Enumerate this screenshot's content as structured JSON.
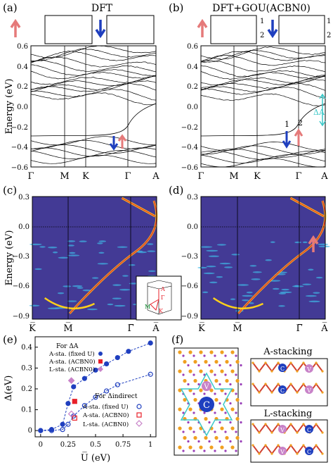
{
  "panels": {
    "a": {
      "label": "(a)",
      "title": "DFT",
      "ylabel": "Energy (eV)",
      "yticks": [
        "0.6",
        "0.4",
        "0.2",
        "0.0",
        "−0.2",
        "−0.4",
        "−0.6"
      ],
      "xticks": [
        "Γ",
        "M",
        "K",
        "Γ",
        "A"
      ]
    },
    "b": {
      "label": "(b)",
      "title": "DFT+GOU(ACBN0)",
      "yticks": [
        "0.6",
        "0.4",
        "0.2",
        "0.0",
        "−0.2",
        "−0.4",
        "−0.6"
      ],
      "xticks": [
        "Γ",
        "M",
        "K",
        "Γ",
        "A"
      ],
      "inset_layer_labels": [
        "1",
        "2",
        "1",
        "2"
      ],
      "arrow_labels": [
        "1",
        "2"
      ],
      "gap_label": "ΔA"
    },
    "c": {
      "label": "(c)",
      "ylabel": "Energy (eV)",
      "yticks": [
        "0.3",
        "0.0",
        "−0.3",
        "−0.6",
        "−0.9"
      ],
      "xticks": [
        "K̅",
        "M̅",
        "Γ̅",
        "A̅"
      ],
      "bz_labels": [
        "A",
        "Γ",
        "M",
        "K"
      ]
    },
    "d": {
      "label": "(d)",
      "yticks": [
        "0.3",
        "0.0",
        "−0.3",
        "−0.6",
        "−0.9"
      ],
      "xticks": [
        "K̅",
        "M̅",
        "Γ̅",
        "A̅"
      ]
    },
    "e": {
      "label": "(e)",
      "ylabel": "Δ(eV)",
      "xlabel": "U̅ (eV)",
      "legend_delta_a_title": "For ΔA",
      "legend_delta_a": [
        "A-sta. (fixed U)",
        "A-sta. (ACBN0)",
        "L-sta. (ACBN0)"
      ],
      "legend_delta_ind_title": "For Δindirect",
      "legend_delta_ind": [
        "A-sta. (fixed U)",
        "A-sta. (ACBN0)",
        "L-sta. (ACBN0)"
      ]
    },
    "f": {
      "label": "(f)",
      "atom_labels": [
        "V",
        "C",
        "V",
        "C"
      ],
      "a_stacking": "A-stacking",
      "l_stacking": "L-stacking"
    }
  },
  "chart_data": {
    "type": "scatter",
    "xlabel": "U̅ (eV)",
    "ylabel": "Δ(eV)",
    "xlim": [
      -0.05,
      1.05
    ],
    "ylim": [
      -0.03,
      0.45
    ],
    "xticks": [
      0,
      0.25,
      0.5,
      0.75,
      1
    ],
    "yticks": [
      0,
      0.1,
      0.2,
      0.3,
      0.4
    ],
    "series": [
      {
        "name": "A-sta. (fixed U)",
        "marker": "filled-circle",
        "color": "#1f3fbf",
        "x": [
          0,
          0.1,
          0.2,
          0.25,
          0.3,
          0.4,
          0.5,
          0.6,
          0.7,
          0.8,
          1.0
        ],
        "y": [
          0.0,
          0.005,
          0.03,
          0.13,
          0.21,
          0.25,
          0.29,
          0.32,
          0.35,
          0.38,
          0.42
        ]
      },
      {
        "name": "A-sta. (ACBN0)",
        "marker": "filled-square",
        "color": "#e8202a",
        "x": [
          0.31
        ],
        "y": [
          0.14
        ]
      },
      {
        "name": "L-sta. (ACBN0)",
        "marker": "filled-diamond",
        "color": "#c882c8",
        "x": [
          0.28
        ],
        "y": [
          0.24
        ]
      },
      {
        "name": "A-sta. (fixed U)",
        "marker": "open-circle",
        "color": "#1f3fbf",
        "x": [
          0,
          0.1,
          0.2,
          0.25,
          0.3,
          0.4,
          0.5,
          0.6,
          0.7,
          1.0
        ],
        "y": [
          0.0,
          0.0,
          0.005,
          0.03,
          0.07,
          0.12,
          0.16,
          0.19,
          0.22,
          0.27
        ]
      },
      {
        "name": "A-sta. (ACBN0)",
        "marker": "open-square",
        "color": "#e8202a",
        "x": [
          0.31
        ],
        "y": [
          0.06
        ]
      },
      {
        "name": "L-sta. (ACBN0)",
        "marker": "open-diamond",
        "color": "#c882c8",
        "x": [
          0.28
        ],
        "y": [
          0.08
        ]
      }
    ]
  }
}
